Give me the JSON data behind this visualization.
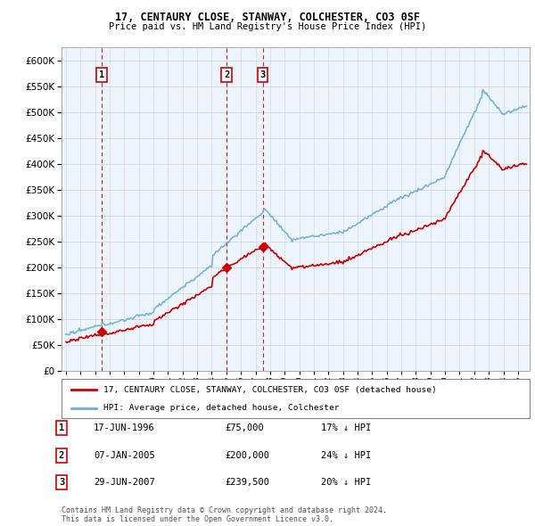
{
  "title1": "17, CENTAURY CLOSE, STANWAY, COLCHESTER, CO3 0SF",
  "title2": "Price paid vs. HM Land Registry's House Price Index (HPI)",
  "ytick_vals": [
    0,
    50000,
    100000,
    150000,
    200000,
    250000,
    300000,
    350000,
    400000,
    450000,
    500000,
    550000,
    600000
  ],
  "ylim": [
    0,
    625000
  ],
  "xlim_start": 1993.7,
  "xlim_end": 2025.8,
  "transactions": [
    {
      "label": "1",
      "date": 1996.46,
      "price": 75000
    },
    {
      "label": "2",
      "date": 2005.02,
      "price": 200000
    },
    {
      "label": "3",
      "date": 2007.49,
      "price": 239500
    }
  ],
  "hpi_color": "#6baed6",
  "price_color": "#cc0000",
  "dashed_color": "#cc0000",
  "legend_label_price": "17, CENTAURY CLOSE, STANWAY, COLCHESTER, CO3 0SF (detached house)",
  "legend_label_hpi": "HPI: Average price, detached house, Colchester",
  "table_entries": [
    {
      "num": "1",
      "date": "17-JUN-1996",
      "price": "£75,000",
      "hpi": "17% ↓ HPI"
    },
    {
      "num": "2",
      "date": "07-JAN-2005",
      "price": "£200,000",
      "hpi": "24% ↓ HPI"
    },
    {
      "num": "3",
      "date": "29-JUN-2007",
      "price": "£239,500",
      "hpi": "20% ↓ HPI"
    }
  ],
  "footer": "Contains HM Land Registry data © Crown copyright and database right 2024.\nThis data is licensed under the Open Government Licence v3.0."
}
